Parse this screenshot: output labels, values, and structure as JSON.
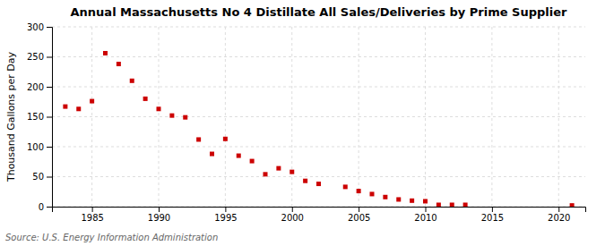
{
  "chart_data": {
    "type": "scatter",
    "title": "Annual Massachusetts No 4 Distillate All Sales/Deliveries by Prime Supplier",
    "ylabel": "Thousand Gallons per Day",
    "source": "Source: U.S. Energy Information Administration",
    "x": [
      1983,
      1984,
      1985,
      1986,
      1987,
      1988,
      1989,
      1990,
      1991,
      1992,
      1993,
      1994,
      1995,
      1996,
      1997,
      1998,
      1999,
      2000,
      2001,
      2002,
      2004,
      2005,
      2006,
      2007,
      2008,
      2009,
      2010,
      2011,
      2012,
      2013,
      2021
    ],
    "values": [
      167,
      163,
      176,
      256,
      238,
      210,
      180,
      163,
      152,
      149,
      112,
      88,
      113,
      85,
      76,
      54,
      64,
      58,
      43,
      38,
      33,
      26,
      21,
      16,
      12,
      10,
      9,
      3,
      3,
      3,
      2
    ],
    "color": "#cc0000",
    "marker": "square",
    "xlim": [
      1982,
      2022
    ],
    "ylim": [
      0,
      300
    ],
    "xticks": [
      1985,
      1990,
      1995,
      2000,
      2005,
      2010,
      2015,
      2020
    ],
    "yticks": [
      0,
      50,
      100,
      150,
      200,
      250,
      300
    ],
    "grid": true
  }
}
